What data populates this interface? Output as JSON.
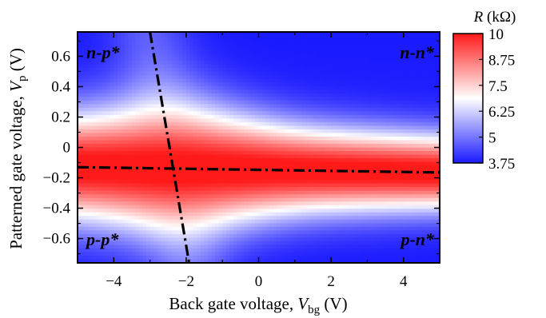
{
  "chart_data": {
    "type": "heatmap",
    "x_label_prefix": "Back gate voltage, ",
    "x_label_var": "V",
    "x_label_sub": "bg",
    "x_label_unit": " (V)",
    "y_label_prefix": "Patterned gate voltage, ",
    "y_label_var": "V",
    "y_label_sub": "p",
    "y_label_unit": " (V)",
    "xlim": [
      -5,
      5
    ],
    "ylim": [
      -0.76,
      0.76
    ],
    "x_ticks": [
      -4,
      -2,
      0,
      2,
      4
    ],
    "x_tick_labels": [
      "−4",
      "−2",
      "0",
      "2",
      "4"
    ],
    "y_ticks": [
      0.6,
      0.4,
      0.2,
      0,
      -0.2,
      -0.4,
      -0.6
    ],
    "y_tick_labels": [
      "0.6",
      "0.4",
      "0.2",
      "0",
      "−0.2",
      "−0.4",
      "−0.6"
    ],
    "colorbar": {
      "title_var": "R",
      "title_unit": " (kΩ)",
      "min": 3.75,
      "max": 10,
      "ticks": [
        10,
        8.75,
        7.5,
        6.25,
        5,
        3.75
      ],
      "tick_labels": [
        "10",
        "8.75",
        "7.5",
        "6.25",
        "5",
        "3.75"
      ],
      "colors": [
        "#1a1aff",
        "#ffffff",
        "#ff1a1a"
      ]
    },
    "quadrant_labels": {
      "top_left": "n-p*",
      "top_right": "n-n*",
      "bottom_left": "p-p*",
      "bottom_right": "p-n*"
    },
    "dirac_lines": [
      {
        "name": "patterned",
        "points": [
          [
            -5,
            -0.13
          ],
          [
            5,
            -0.165
          ]
        ]
      },
      {
        "name": "back",
        "points": [
          [
            -3.0,
            0.76
          ],
          [
            -1.92,
            -0.76
          ]
        ]
      }
    ],
    "resistance_model": {
      "R_min": 3.75,
      "R_peak": 10.2,
      "note": "peak along patterned-gate Dirac line, broader on left, cross peak along back-gate Dirac line"
    }
  }
}
